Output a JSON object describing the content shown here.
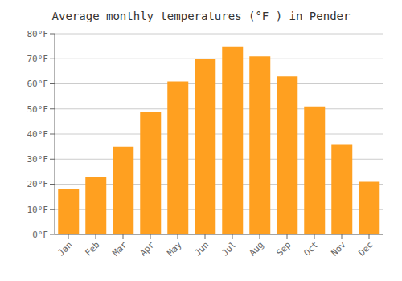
{
  "chart_data": {
    "type": "bar",
    "title": "Average monthly temperatures (°F ) in Pender",
    "categories": [
      "Jan",
      "Feb",
      "Mar",
      "Apr",
      "May",
      "Jun",
      "Jul",
      "Aug",
      "Sep",
      "Oct",
      "Nov",
      "Dec"
    ],
    "values": [
      18,
      23,
      35,
      49,
      61,
      70,
      75,
      71,
      63,
      51,
      36,
      21
    ],
    "color": "#FFA020",
    "ylim": [
      0,
      80
    ],
    "yticks": [
      {
        "value": 0,
        "label": "0°F"
      },
      {
        "value": 10,
        "label": "10°F"
      },
      {
        "value": 20,
        "label": "20°F"
      },
      {
        "value": 30,
        "label": "30°F"
      },
      {
        "value": 40,
        "label": "40°F"
      },
      {
        "value": 50,
        "label": "50°F"
      },
      {
        "value": 60,
        "label": "60°F"
      },
      {
        "value": 70,
        "label": "70°F"
      },
      {
        "value": 80,
        "label": "80°F"
      }
    ],
    "grid": true
  }
}
